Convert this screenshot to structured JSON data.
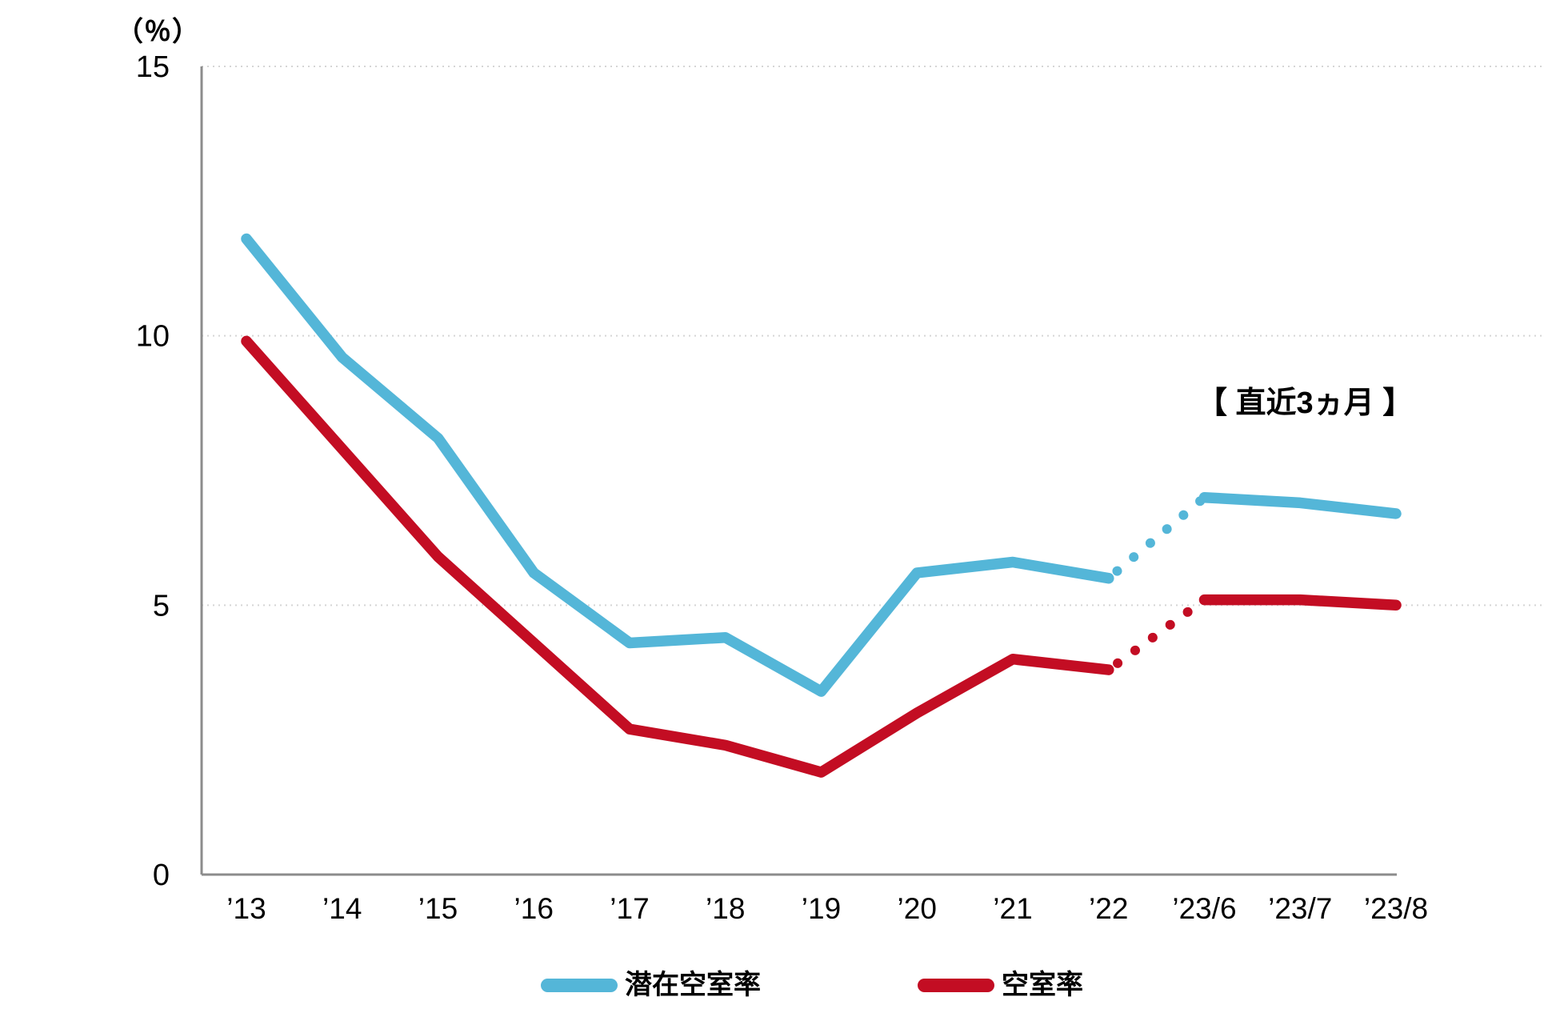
{
  "chart": {
    "unit_label": "（％）",
    "annotation": "【 直近3ヵ月 】",
    "legend": [
      {
        "label": "潜在空室率",
        "color": "#54B6D8"
      },
      {
        "label": "空室率",
        "color": "#C30D23"
      }
    ],
    "colors": {
      "axis": "#8C8C8C",
      "gridline": "#D5D5D5",
      "text": "#000000"
    }
  },
  "chart_data": {
    "type": "line",
    "title": "",
    "xlabel": "",
    "ylabel": "（％）",
    "ylim": [
      0,
      15
    ],
    "yticks": [
      0,
      5,
      10,
      15
    ],
    "grid": "horizontal-dotted",
    "legend_position": "bottom",
    "categories": [
      "’13",
      "’14",
      "’15",
      "’16",
      "’17",
      "’18",
      "’19",
      "’20",
      "’21",
      "’22",
      "’23/6",
      "’23/7",
      "’23/8"
    ],
    "series": [
      {
        "name": "潜在空室率",
        "color": "#54B6D8",
        "values": [
          11.8,
          9.6,
          8.1,
          5.6,
          4.3,
          4.4,
          3.4,
          5.6,
          5.8,
          5.5,
          7.0,
          6.9,
          6.7
        ],
        "dotted_between_indices": [
          9,
          10
        ]
      },
      {
        "name": "空室率",
        "color": "#C30D23",
        "values": [
          9.9,
          7.9,
          5.9,
          4.3,
          2.7,
          2.4,
          1.9,
          3.0,
          4.0,
          3.8,
          5.1,
          5.1,
          5.0
        ],
        "dotted_between_indices": [
          9,
          10
        ]
      }
    ],
    "annotation": {
      "text": "【 直近3ヵ月 】",
      "over_categories": [
        "’23/6",
        "’23/7",
        "’23/8"
      ]
    }
  }
}
